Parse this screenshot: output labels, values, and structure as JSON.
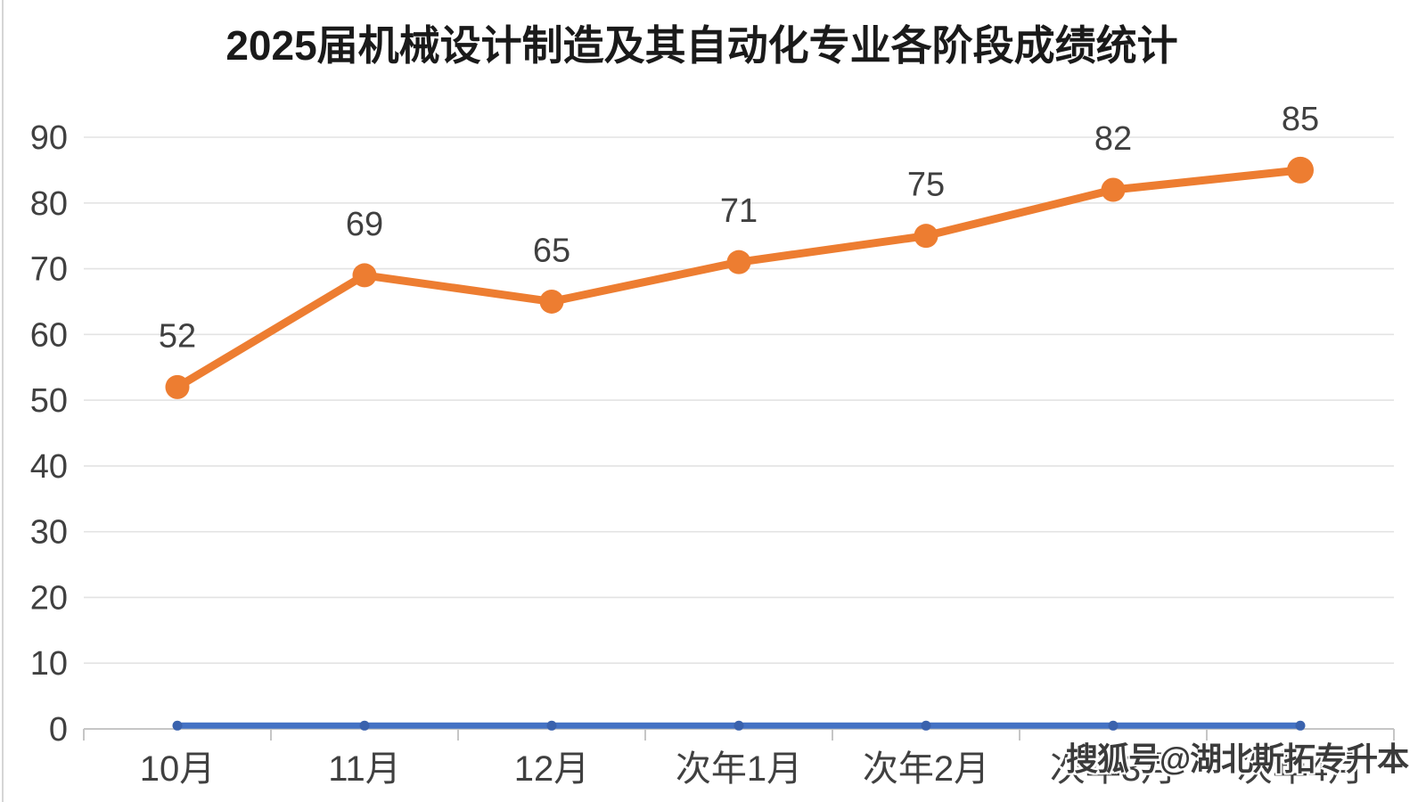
{
  "page": {
    "watermark": "搜狐号@湖北斯拓专升本"
  },
  "chart_data": {
    "type": "line",
    "title": "2025届机械设计制造及其自动化专业各阶段成绩统计",
    "xlabel": "",
    "ylabel": "",
    "categories": [
      "10月",
      "11月",
      "12月",
      "次年1月",
      "次年2月",
      "次年3月",
      "次年4月"
    ],
    "series": [
      {
        "name": "",
        "slug": "orange-series",
        "color": "#ED7D31",
        "values": [
          52,
          69,
          65,
          71,
          75,
          82,
          85
        ],
        "show_labels": true,
        "marker": "circle",
        "line_width": 9,
        "marker_radius": 13.5,
        "last_marker_radius": 15
      },
      {
        "name": "",
        "slug": "blue-series",
        "color": "#4472C4",
        "marker_color": "#3A62AD",
        "values": [
          0.5,
          0.5,
          0.5,
          0.5,
          0.5,
          0.5,
          0.5
        ],
        "show_labels": false,
        "marker": "circle",
        "line_width": 7,
        "marker_radius": 5.5
      }
    ],
    "ylim": [
      0,
      90
    ],
    "yticks": [
      0,
      10,
      20,
      30,
      40,
      50,
      60,
      70,
      80,
      90
    ],
    "grid": true,
    "legend": false,
    "colors": {
      "grid": "#E3E3E3",
      "axis": "#C6C6C6",
      "tick_label": "#404040",
      "data_label": "#404040",
      "title": "#1A1A1A",
      "watermark_text": "#3B3B3B",
      "background": "#FFFFFF",
      "left_border": "#D5D5D5"
    }
  }
}
